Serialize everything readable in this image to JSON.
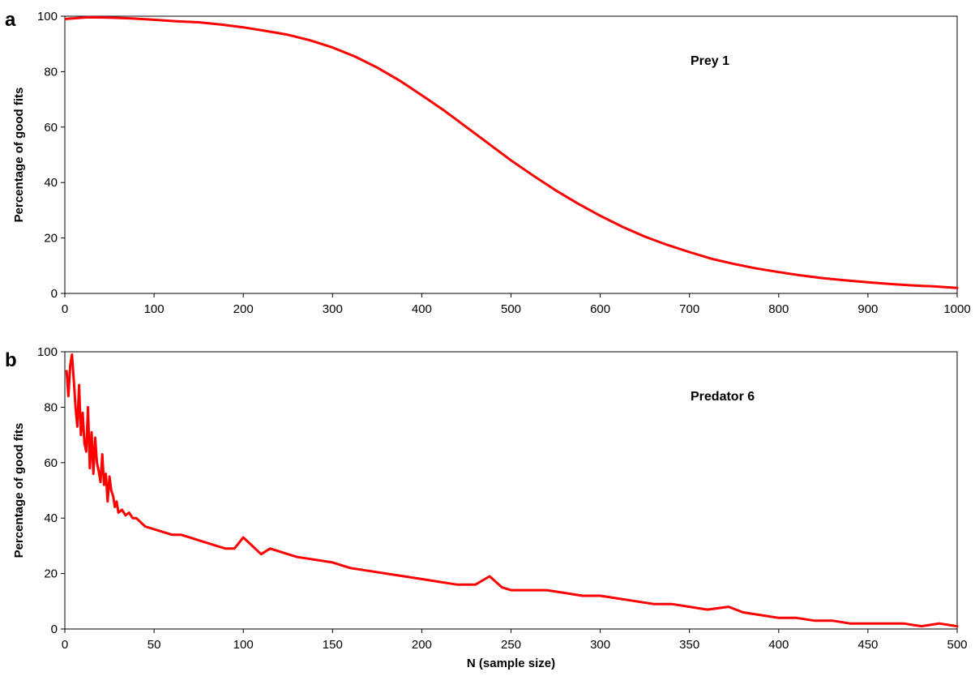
{
  "figure": {
    "series_color": "#ff0000",
    "xlabel_shared": "N (sample size)"
  },
  "chart_data": [
    {
      "panel": "a",
      "type": "line",
      "annotation": "Prey 1",
      "xlabel": "",
      "ylabel": "Percentage of good fits",
      "xlim": [
        0,
        1000
      ],
      "ylim": [
        0,
        100
      ],
      "xticks": [
        0,
        100,
        200,
        300,
        400,
        500,
        600,
        700,
        800,
        900,
        1000
      ],
      "yticks": [
        0,
        20,
        40,
        60,
        80,
        100
      ],
      "grid": false,
      "series": [
        {
          "x": [
            1,
            25,
            50,
            75,
            100,
            125,
            150,
            175,
            200,
            225,
            250,
            275,
            300,
            325,
            350,
            375,
            400,
            425,
            450,
            475,
            500,
            525,
            550,
            575,
            600,
            625,
            650,
            675,
            700,
            725,
            750,
            775,
            800,
            825,
            850,
            875,
            900,
            925,
            950,
            975,
            1000
          ],
          "y": [
            99,
            99.6,
            99.5,
            99.2,
            98.7,
            98.2,
            97.8,
            97,
            96,
            94.7,
            93.3,
            91.3,
            88.7,
            85.5,
            81.5,
            76.8,
            71.5,
            66,
            60,
            54,
            48,
            42.5,
            37.2,
            32.4,
            28,
            24,
            20.5,
            17.5,
            14.9,
            12.5,
            10.6,
            9,
            7.7,
            6.5,
            5.5,
            4.7,
            4,
            3.4,
            2.9,
            2.5,
            2
          ]
        }
      ]
    },
    {
      "panel": "b",
      "type": "line",
      "annotation": "Predator 6",
      "xlabel": "N (sample size)",
      "ylabel": "Percentage of good fits",
      "xlim": [
        0,
        500
      ],
      "ylim": [
        0,
        100
      ],
      "xticks": [
        0,
        50,
        100,
        150,
        200,
        250,
        300,
        350,
        400,
        450,
        500
      ],
      "yticks": [
        0,
        20,
        40,
        60,
        80,
        100
      ],
      "grid": false,
      "series": [
        {
          "x": [
            1,
            2,
            3,
            4,
            5,
            6,
            7,
            8,
            9,
            10,
            11,
            12,
            13,
            14,
            15,
            16,
            17,
            18,
            19,
            20,
            21,
            22,
            23,
            24,
            25,
            26,
            27,
            28,
            29,
            30,
            32,
            34,
            36,
            38,
            40,
            45,
            50,
            55,
            60,
            65,
            70,
            75,
            80,
            85,
            90,
            95,
            100,
            105,
            110,
            115,
            120,
            125,
            130,
            140,
            150,
            160,
            170,
            180,
            190,
            200,
            210,
            220,
            230,
            238,
            245,
            250,
            260,
            270,
            280,
            290,
            300,
            310,
            320,
            330,
            340,
            350,
            360,
            372,
            380,
            390,
            400,
            410,
            420,
            430,
            440,
            450,
            460,
            470,
            480,
            490,
            500
          ],
          "y": [
            93,
            84,
            95,
            99,
            90,
            80,
            73,
            88,
            70,
            78,
            67,
            64,
            80,
            58,
            71,
            56,
            69,
            60,
            57,
            53,
            63,
            52,
            56,
            46,
            55,
            50,
            48,
            44,
            46,
            42,
            43,
            41,
            42,
            40,
            40,
            37,
            36,
            35,
            34,
            34,
            33,
            32,
            31,
            30,
            29,
            29,
            33,
            30,
            27,
            29,
            28,
            27,
            26,
            25,
            24,
            22,
            21,
            20,
            19,
            18,
            17,
            16,
            16,
            19,
            15,
            14,
            14,
            14,
            13,
            12,
            12,
            11,
            10,
            9,
            9,
            8,
            7,
            8,
            6,
            5,
            4,
            4,
            3,
            3,
            2,
            2,
            2,
            2,
            1,
            2,
            1
          ]
        }
      ]
    }
  ]
}
